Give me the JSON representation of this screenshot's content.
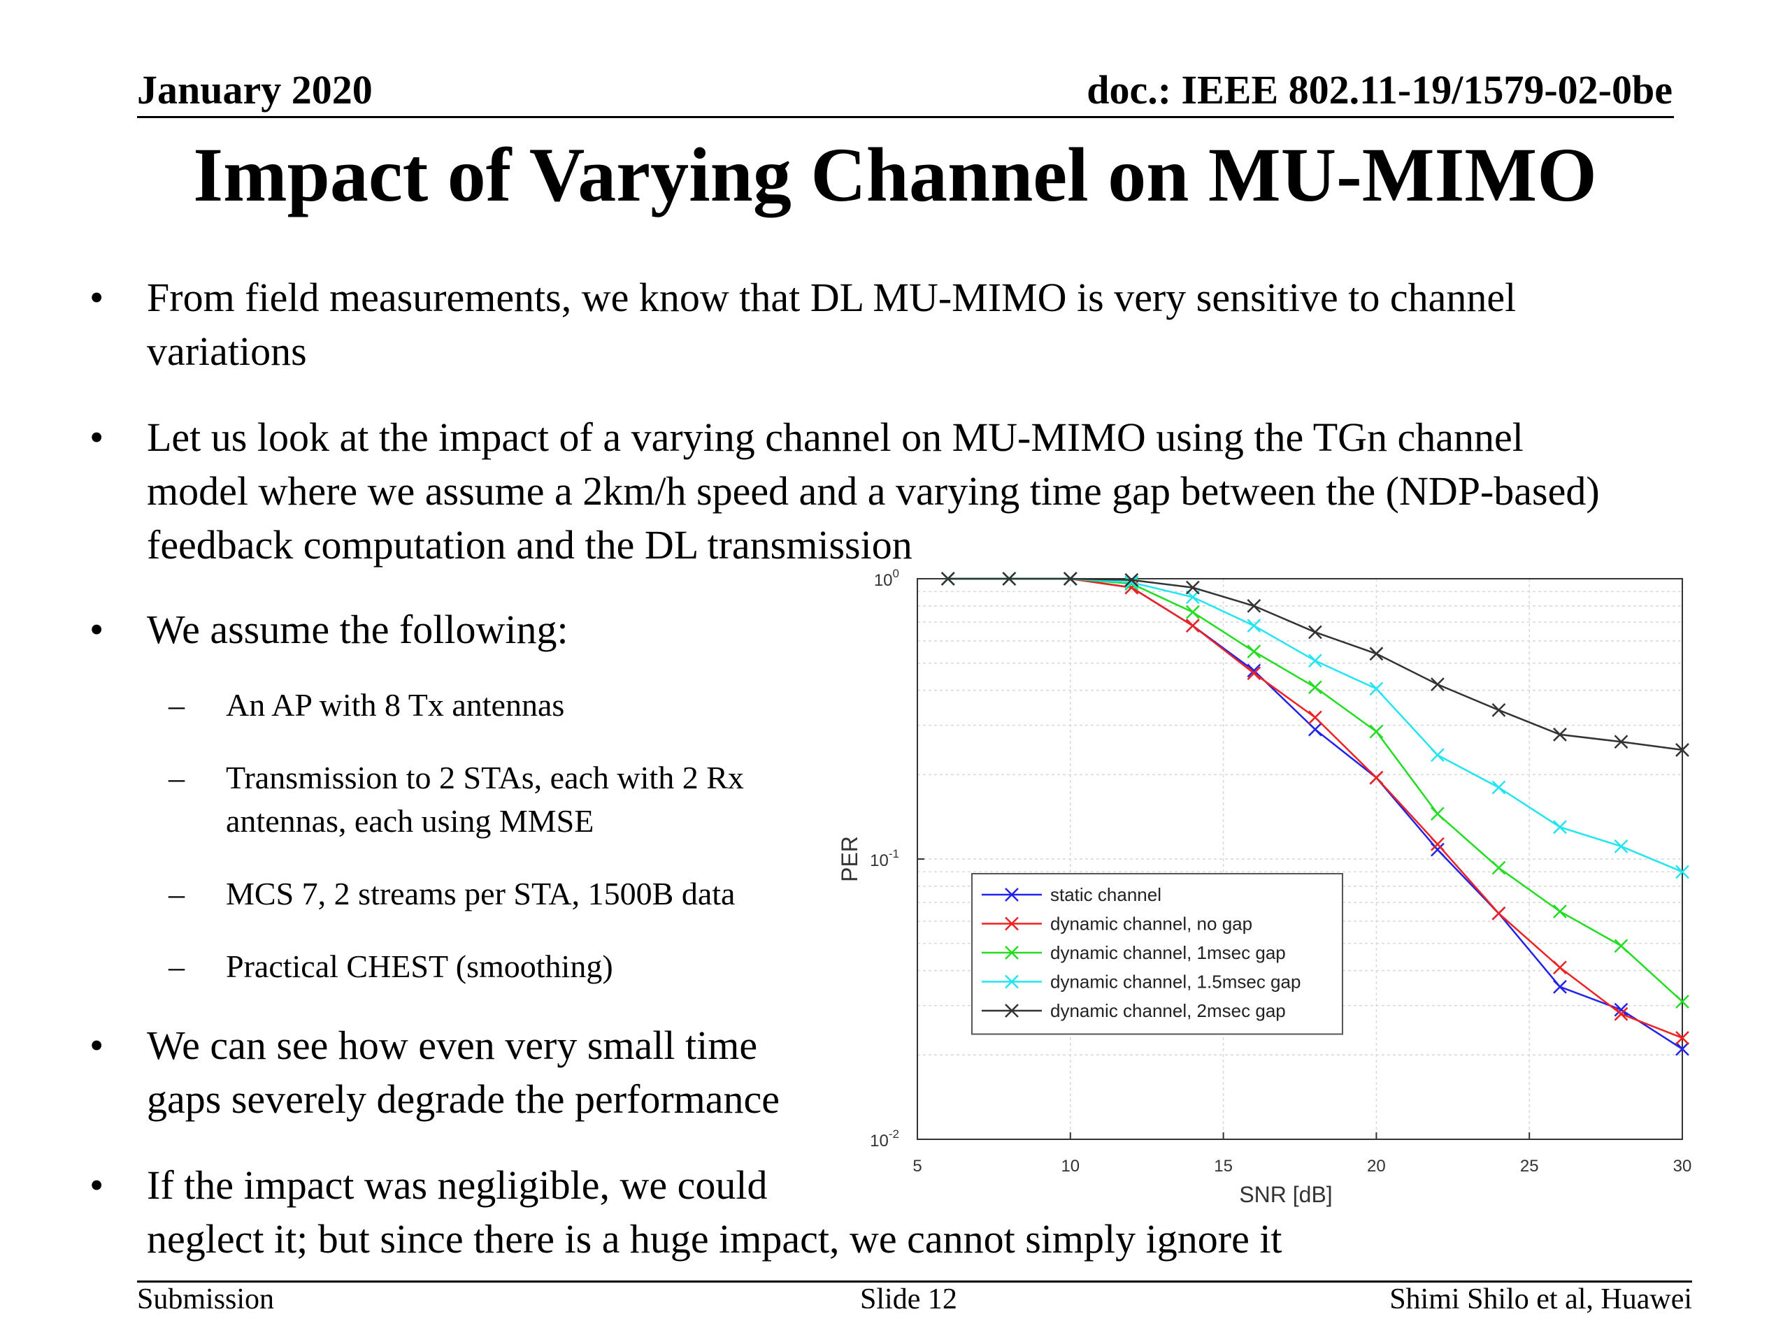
{
  "header": {
    "date": "January 2020",
    "doc": "doc.: IEEE 802.11-19/1579-02-0be"
  },
  "title": "Impact of Varying Channel on MU-MIMO",
  "bullets": {
    "b1": [
      "From field measurements, we know that DL MU-MIMO is very sensitive to channel",
      "variations"
    ],
    "b2": [
      "Let us look at the impact of a varying channel on MU-MIMO using the TGn channel",
      "model where we assume a 2km/h speed and a varying time gap between the (NDP-based)",
      "feedback computation and the DL transmission"
    ],
    "b3": "We assume the following:",
    "subs": [
      "An AP with 8 Tx antennas",
      "Transmission to 2 STAs, each with 2 Rx",
      "antennas, each using MMSE",
      "MCS 7, 2 streams per STA, 1500B data",
      "Practical CHEST (smoothing)"
    ],
    "b4": [
      "We can see how even very small time",
      "gaps severely degrade the performance"
    ],
    "b5": [
      "If the impact was negligible, we could",
      "neglect it; but since there is a huge impact, we cannot simply ignore it"
    ]
  },
  "bullet_symbol": "•",
  "sub_symbol": "–",
  "footer": {
    "left": "Submission",
    "center": "Slide 12",
    "right": "Shimi Shilo et al, Huawei"
  },
  "chart_data": {
    "type": "line",
    "xlabel": "SNR [dB]",
    "ylabel": "PER",
    "xlim": [
      5,
      30
    ],
    "ylim": [
      0.01,
      1
    ],
    "yscale": "log",
    "grid": true,
    "legend_position": "lower-left",
    "x_ticks": [
      5,
      10,
      15,
      20,
      25,
      30
    ],
    "y_ticks": [
      {
        "value": 1,
        "base": "10",
        "exp": "0"
      },
      {
        "value": 0.1,
        "base": "10",
        "exp": "-1"
      },
      {
        "value": 0.01,
        "base": "10",
        "exp": "-2"
      }
    ],
    "x": [
      6,
      8,
      10,
      12,
      14,
      16,
      18,
      20,
      22,
      24,
      26,
      28,
      30
    ],
    "series": [
      {
        "name": "static channel",
        "color": "#2222ee",
        "values": [
          1.0,
          1.0,
          1.0,
          0.93,
          0.68,
          0.47,
          0.29,
          0.195,
          0.108,
          0.064,
          0.035,
          0.029,
          0.021
        ]
      },
      {
        "name": "dynamic channel, no gap",
        "color": "#ee2222",
        "values": [
          1.0,
          1.0,
          1.0,
          0.93,
          0.68,
          0.46,
          0.32,
          0.195,
          0.113,
          0.064,
          0.041,
          0.028,
          0.023
        ]
      },
      {
        "name": "dynamic channel, 1msec gap",
        "color": "#22dd22",
        "values": [
          1.0,
          1.0,
          1.0,
          0.96,
          0.76,
          0.55,
          0.41,
          0.285,
          0.145,
          0.093,
          0.065,
          0.049,
          0.031
        ]
      },
      {
        "name": "dynamic channel, 1.5msec gap",
        "color": "#22e5f0",
        "values": [
          1.0,
          1.0,
          1.0,
          0.97,
          0.86,
          0.68,
          0.51,
          0.405,
          0.235,
          0.18,
          0.13,
          0.111,
          0.09
        ]
      },
      {
        "name": "dynamic channel, 2msec gap",
        "color": "#333333",
        "values": [
          1.0,
          1.0,
          1.0,
          0.99,
          0.93,
          0.8,
          0.645,
          0.54,
          0.42,
          0.34,
          0.278,
          0.262,
          0.245
        ]
      }
    ]
  }
}
